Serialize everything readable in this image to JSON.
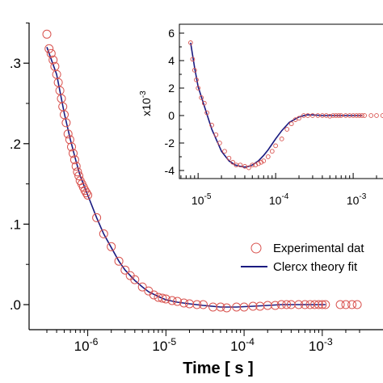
{
  "chart_data": [
    {
      "type": "scatter",
      "role": "main",
      "xlabel": "Time [ s ]",
      "x_scale": "log",
      "xlim": [
        3e-07,
        0.003
      ],
      "ylim": [
        0,
        0.35
      ],
      "yticks": [
        0.0,
        0.1,
        0.2,
        0.3
      ],
      "ytick_labels": [
        ".0",
        ".1",
        ".2",
        ".3"
      ],
      "xticks": [
        1e-06,
        1e-05,
        0.0001,
        0.001
      ],
      "xtick_labels": [
        {
          "base": "10",
          "exp": "-6"
        },
        {
          "base": "10",
          "exp": "-5"
        },
        {
          "base": "10",
          "exp": "-4"
        },
        {
          "base": "10",
          "exp": "-3"
        }
      ],
      "legend": {
        "placement": "right-middle",
        "entries": [
          {
            "label": "Experimental dat",
            "marker": "open-circle",
            "color": "#d9534f"
          },
          {
            "label": "Clercx theory fit",
            "marker": "line",
            "color": "#1a1a80"
          }
        ]
      },
      "series": [
        {
          "name": "Experimental dat",
          "marker": "open-circle",
          "color": "#d9534f",
          "x": [
            3e-07,
            3.2e-07,
            3.4e-07,
            3.6e-07,
            3.8e-07,
            4e-07,
            4.2e-07,
            4.4e-07,
            4.6e-07,
            4.8e-07,
            5e-07,
            5.3e-07,
            5.6e-07,
            5.9e-07,
            6.2e-07,
            6.5e-07,
            6.8e-07,
            7.1e-07,
            7.4e-07,
            7.7e-07,
            8e-07,
            8.4e-07,
            8.8e-07,
            9.2e-07,
            9.6e-07,
            1e-06,
            1.3e-06,
            1.6e-06,
            2e-06,
            2.5e-06,
            3e-06,
            3.5e-06,
            4e-06,
            5e-06,
            6e-06,
            7e-06,
            8e-06,
            9e-06,
            1e-05,
            1.2e-05,
            1.4e-05,
            1.7e-05,
            2e-05,
            2.5e-05,
            3e-05,
            4e-05,
            5e-05,
            6e-05,
            8e-05,
            0.0001,
            0.00013,
            0.00016,
            0.0002,
            0.00025,
            0.0003,
            0.00035,
            0.0004,
            0.0005,
            0.0006,
            0.0007,
            0.0008,
            0.0009,
            0.001,
            0.0011,
            0.0017,
            0.002,
            0.0024,
            0.0028
          ],
          "y": [
            0.336,
            0.318,
            0.312,
            0.304,
            0.296,
            0.286,
            0.276,
            0.266,
            0.256,
            0.246,
            0.236,
            0.226,
            0.212,
            0.205,
            0.196,
            0.188,
            0.18,
            0.172,
            0.165,
            0.16,
            0.154,
            0.15,
            0.146,
            0.142,
            0.139,
            0.136,
            0.108,
            0.088,
            0.072,
            0.054,
            0.043,
            0.036,
            0.031,
            0.022,
            0.017,
            0.012,
            0.009,
            0.008,
            0.007,
            0.005,
            0.004,
            0.002,
            0.001,
            0.0,
            0.0,
            -0.003,
            -0.003,
            -0.004,
            -0.003,
            -0.003,
            -0.002,
            -0.002,
            -0.001,
            -0.001,
            0.0,
            0.0,
            0.0,
            0.0,
            0.0,
            0.0,
            0.0,
            0.0,
            0.0,
            0.0,
            0.0,
            0.0,
            0.0,
            0.0
          ]
        },
        {
          "name": "Clercx theory fit",
          "style": "line",
          "color": "#1a1a80",
          "x": [
            3e-07,
            4e-07,
            5e-07,
            6e-07,
            7e-07,
            8e-07,
            1e-06,
            1.3e-06,
            1.6e-06,
            2e-06,
            2.5e-06,
            3e-06,
            4e-06,
            5e-06,
            6e-06,
            8e-06,
            1e-05,
            1.4e-05,
            2e-05,
            3e-05,
            5e-05,
            8e-05,
            0.00013,
            0.0002,
            0.0003,
            0.0005,
            0.001,
            0.0011
          ],
          "y": [
            0.32,
            0.286,
            0.238,
            0.205,
            0.18,
            0.16,
            0.136,
            0.108,
            0.088,
            0.071,
            0.054,
            0.043,
            0.03,
            0.022,
            0.016,
            0.01,
            0.006,
            0.003,
            0.001,
            -0.001,
            -0.003,
            -0.003,
            -0.002,
            -0.001,
            0.0,
            0.0,
            0.0,
            0.0
          ]
        }
      ]
    },
    {
      "type": "scatter",
      "role": "inset",
      "ylabel_base": "x10",
      "ylabel_exp": "-3",
      "x_scale": "log",
      "xlim": [
        4e-06,
        0.0015
      ],
      "ylim": [
        -4.3,
        6.2
      ],
      "yticks": [
        -4,
        -2,
        0,
        2,
        4,
        6
      ],
      "ytick_labels": [
        "-4",
        "-2",
        "0",
        "2",
        "4",
        "6"
      ],
      "xticks": [
        1e-05,
        0.0001,
        0.001
      ],
      "xtick_labels": [
        {
          "base": "10",
          "exp": "-5"
        },
        {
          "base": "10",
          "exp": "-4"
        },
        {
          "base": "10",
          "exp": "-3"
        }
      ],
      "series": [
        {
          "name": "Experimental dat",
          "marker": "open-circle",
          "color": "#d9534f",
          "x": [
            8e-06,
            8.5e-06,
            9e-06,
            9.5e-06,
            1e-05,
            1.1e-05,
            1.2e-05,
            1.3e-05,
            1.5e-05,
            1.7e-05,
            1.9e-05,
            2.2e-05,
            2.5e-05,
            2.8e-05,
            3.1e-05,
            3.5e-05,
            4e-05,
            4.5e-05,
            5e-05,
            5.5e-05,
            6e-05,
            6.5e-05,
            7e-05,
            8e-05,
            9e-05,
            0.0001,
            0.00012,
            0.00014,
            0.00016,
            0.00018,
            0.0002,
            0.00023,
            0.00026,
            0.0003,
            0.00035,
            0.0004,
            0.00045,
            0.0005,
            0.00055,
            0.0006,
            0.00065,
            0.0007,
            0.0008,
            0.0009,
            0.001,
            0.0011,
            0.0012,
            0.0013
          ],
          "y": [
            5.3,
            4.1,
            3.3,
            2.6,
            2.0,
            1.3,
            0.9,
            0.2,
            -0.7,
            -1.4,
            -2.0,
            -2.6,
            -3.1,
            -3.4,
            -3.6,
            -3.6,
            -3.7,
            -3.8,
            -3.6,
            -3.6,
            -3.5,
            -3.4,
            -3.3,
            -3.0,
            -2.6,
            -2.2,
            -1.7,
            -1.0,
            -0.6,
            -0.3,
            -0.2,
            0.0,
            0.0,
            0.0,
            0.0,
            0.0,
            0.0,
            -0.05,
            0.0,
            0.0,
            0.0,
            0.0,
            0.0,
            0.0,
            0.0,
            0.0,
            0.0,
            0.0
          ]
        },
        {
          "name": "Clercx theory fit",
          "style": "line",
          "color": "#1a1a80",
          "x": [
            8e-06,
            9e-06,
            1e-05,
            1.2e-05,
            1.5e-05,
            2e-05,
            2.5e-05,
            3e-05,
            3.5e-05,
            4e-05,
            4.5e-05,
            5e-05,
            6e-05,
            7e-05,
            8e-05,
            0.0001,
            0.00012,
            0.00015,
            0.0002,
            0.00025,
            0.0003,
            0.0004,
            0.0006,
            0.001,
            0.0013
          ],
          "y": [
            5.3,
            3.5,
            2.1,
            0.7,
            -1.0,
            -2.6,
            -3.3,
            -3.6,
            -3.7,
            -3.75,
            -3.7,
            -3.6,
            -3.3,
            -2.9,
            -2.5,
            -1.7,
            -1.1,
            -0.5,
            -0.1,
            0.05,
            0.05,
            0.0,
            0.0,
            0.0,
            0.0
          ]
        }
      ]
    }
  ]
}
